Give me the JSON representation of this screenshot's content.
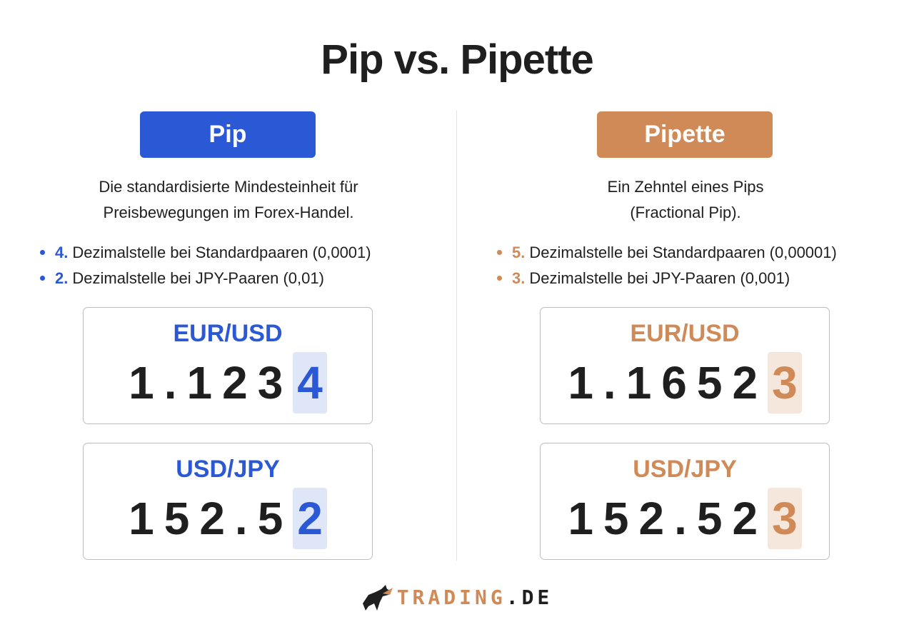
{
  "title": "Pip vs. Pipette",
  "columns": [
    {
      "badge": "Pip",
      "description": [
        "Die standardisierte Mindesteinheit für",
        "Preisbewegungen im Forex-Handel."
      ],
      "bullets": [
        {
          "number": "4.",
          "text": "Dezimalstelle bei Standardpaaren (0,0001)"
        },
        {
          "number": "2.",
          "text": "Dezimalstelle bei JPY-Paaren (0,01)"
        }
      ],
      "quotes": [
        {
          "pair": "EUR/USD",
          "digits": "1.123",
          "highlight": "4"
        },
        {
          "pair": "USD/JPY",
          "digits": "152.5",
          "highlight": "2"
        }
      ]
    },
    {
      "badge": "Pipette",
      "description": [
        "Ein Zehntel eines Pips",
        "(Fractional Pip)."
      ],
      "bullets": [
        {
          "number": "5.",
          "text": "Dezimalstelle bei Standardpaaren (0,00001)"
        },
        {
          "number": "3.",
          "text": "Dezimalstelle bei JPY-Paaren (0,001)"
        }
      ],
      "quotes": [
        {
          "pair": "EUR/USD",
          "digits": "1.1652",
          "highlight": "3"
        },
        {
          "pair": "USD/JPY",
          "digits": "152.52",
          "highlight": "3"
        }
      ]
    }
  ],
  "logo": {
    "name": "TRADING",
    "suffix": ".DE"
  }
}
